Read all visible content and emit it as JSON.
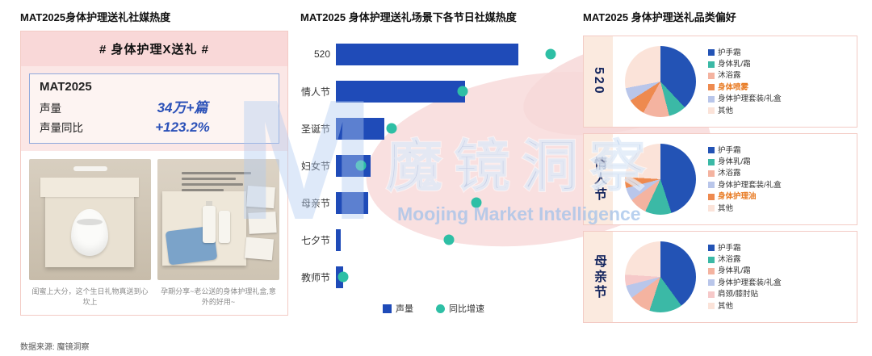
{
  "watermark": {
    "logo_letter": "M",
    "brand_cn": "魔镜洞察",
    "brand_en": "Moojing Market Intelligence"
  },
  "source_note": "数据来源: 魔镜洞察",
  "palette": {
    "bar_blue": "#1F4BB8",
    "dot_teal": "#2EBFA5",
    "value_blue": "#2B51B8",
    "highlight_orange": "#E87A22",
    "pink_band": "#F9D8D8",
    "card_border_pink": "#F3CBC5",
    "pie_band_bg": "#FBEADF",
    "watermark_blue": "#A9C4E9"
  },
  "left_panel": {
    "title": "MAT2025身体护理送礼社媒热度",
    "hashtag": "# 身体护理X送礼 #",
    "stats": {
      "period": "MAT2025",
      "volume_label": "声量",
      "volume_value": "34万+篇",
      "yoy_label": "声量同比",
      "yoy_value": "+123.2%"
    },
    "photo_captions": [
      "闺蜜上大分，这个生日礼物真送到心坎上",
      "孕期分享~老公送的身体护理礼盒,意外的好用~"
    ]
  },
  "middle_panel": {
    "title": "MAT2025 身体护理送礼场景下各节日社媒热度",
    "legend": [
      {
        "label": "声量",
        "marker": "square",
        "color": "#1F4BB8"
      },
      {
        "label": "同比增速",
        "marker": "circle",
        "color": "#2EBFA5"
      }
    ]
  },
  "right_panel": {
    "title": "MAT2025 身体护理送礼品类偏好"
  },
  "chart_data": [
    {
      "type": "bar",
      "orientation": "horizontal",
      "title": "MAT2025 身体护理送礼场景下各节日社媒热度",
      "categories": [
        "520",
        "情人节",
        "圣诞节",
        "妇女节",
        "母亲节",
        "七夕节",
        "教师节"
      ],
      "series": [
        {
          "name": "声量",
          "type": "bar",
          "unit": "% of plot width (numeric axis not labeled in source)",
          "values": [
            79,
            56,
            21,
            15,
            14,
            2,
            3
          ]
        },
        {
          "name": "同比增速",
          "type": "point",
          "unit": "% of plot width (numeric axis not labeled in source)",
          "values": [
            93,
            55,
            24,
            11,
            61,
            49,
            3
          ]
        }
      ],
      "xlim": [
        0,
        100
      ],
      "grid": false,
      "legend_position": "bottom"
    },
    {
      "type": "pie",
      "title": "520",
      "labels": [
        "护手霜",
        "身体乳/霜",
        "沐浴露",
        "身体喷雾",
        "身体护理套装/礼盒",
        "其他"
      ],
      "values": [
        38,
        8,
        12,
        8,
        6,
        28
      ],
      "colors": [
        "#2353B5",
        "#3BB9A6",
        "#F4B3A0",
        "#EE8A4F",
        "#B9C6EA",
        "#FBE3D9"
      ],
      "highlighted_label": "身体喷雾"
    },
    {
      "type": "pie",
      "title": "情人节",
      "labels": [
        "护手霜",
        "身体乳/霜",
        "沐浴露",
        "身体护理套装/礼盒",
        "身体护理油",
        "其他"
      ],
      "values": [
        45,
        12,
        8,
        6,
        5,
        24
      ],
      "colors": [
        "#2353B5",
        "#3BB9A6",
        "#F4B3A0",
        "#B9C6EA",
        "#EE8A4F",
        "#FBE3D9"
      ],
      "highlighted_label": "身体护理油"
    },
    {
      "type": "pie",
      "title": "母亲节",
      "labels": [
        "护手霜",
        "沐浴露",
        "身体乳/霜",
        "身体护理套装/礼盒",
        "肩颈/膝肘贴",
        "其他"
      ],
      "values": [
        40,
        15,
        10,
        6,
        5,
        24
      ],
      "colors": [
        "#2353B5",
        "#3BB9A6",
        "#F4B3A0",
        "#B9C6EA",
        "#F6C9C9",
        "#FBE3D9"
      ],
      "highlighted_label": ""
    }
  ]
}
